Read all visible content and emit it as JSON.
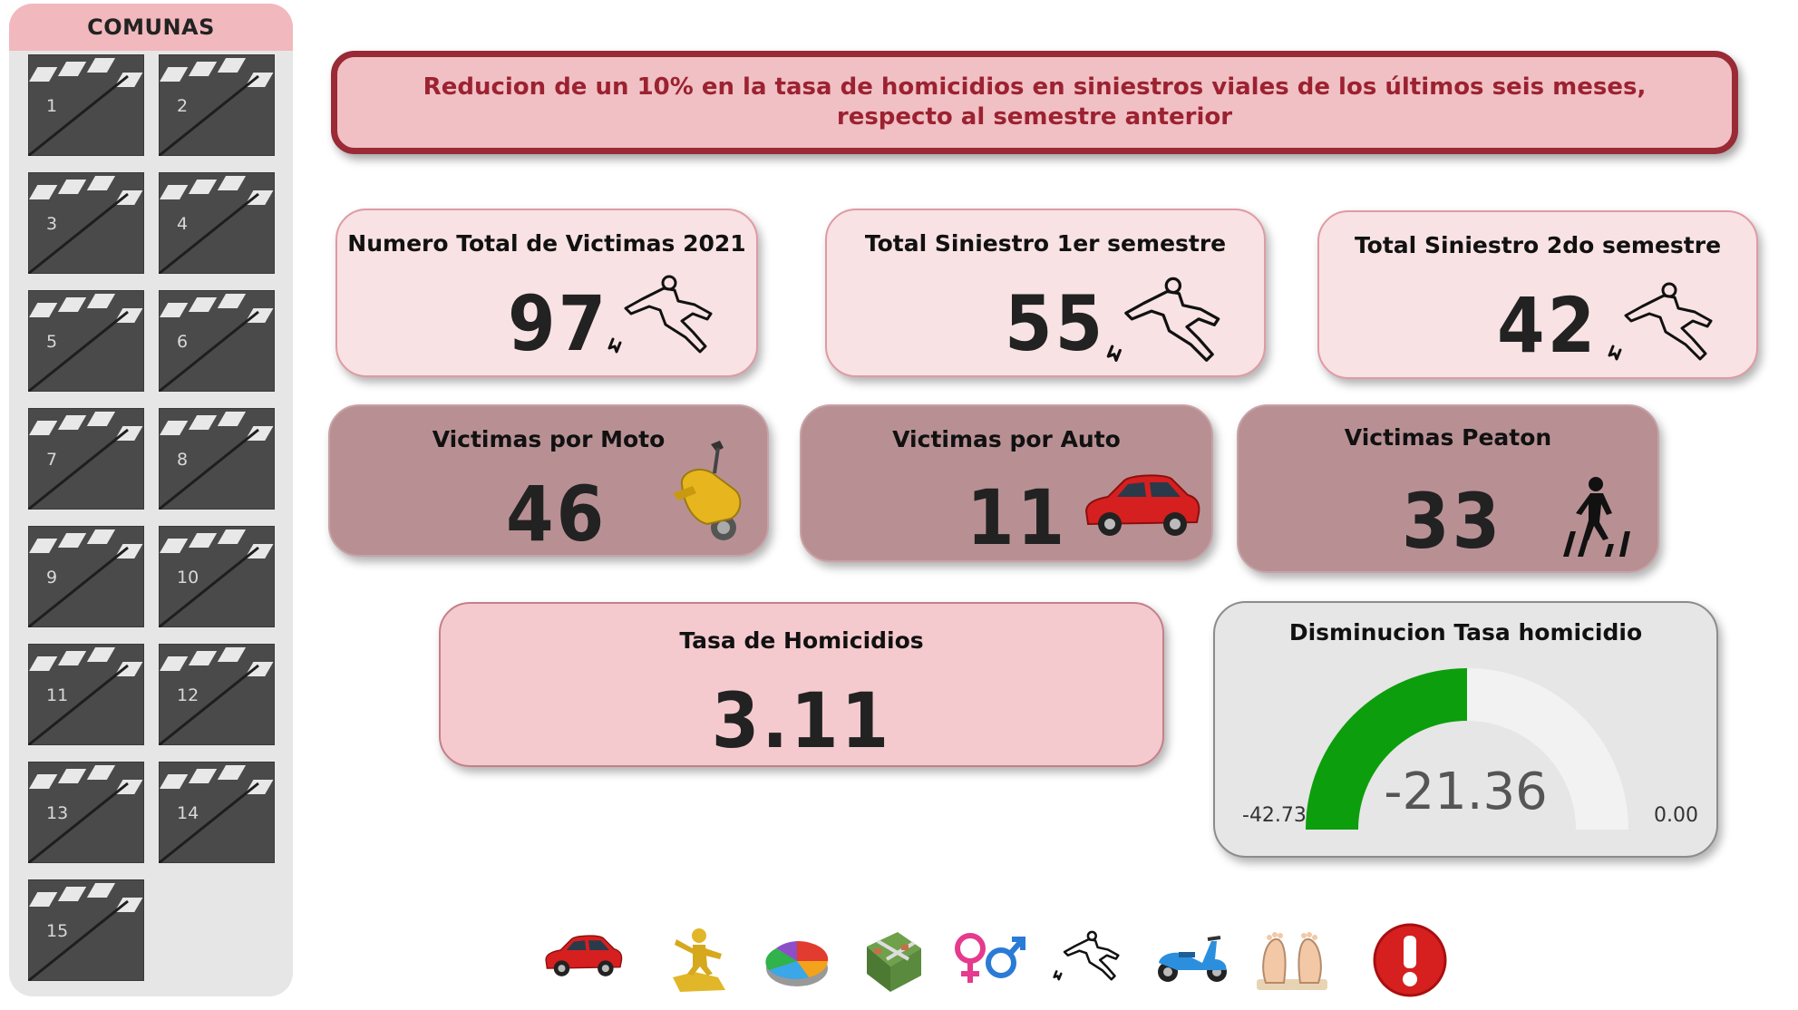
{
  "sidebar": {
    "title": "COMUNAS",
    "comunas": [
      "1",
      "2",
      "3",
      "4",
      "5",
      "6",
      "7",
      "8",
      "9",
      "10",
      "11",
      "12",
      "13",
      "14",
      "15"
    ]
  },
  "banner": {
    "text": "Reducion de un 10% en la tasa de homicidios en siniestros viales de los últimos seis meses, respecto al semestre anterior"
  },
  "cards": {
    "total_victimas": {
      "title": "Numero Total de Victimas 2021",
      "value": "97",
      "icon": "body-outline-icon"
    },
    "siniestro_1": {
      "title": "Total Siniestro 1er semestre",
      "value": "55",
      "icon": "body-outline-icon"
    },
    "siniestro_2": {
      "title": "Total Siniestro 2do semestre",
      "value": "42",
      "icon": "body-outline-icon"
    },
    "moto": {
      "title": "Victimas por Moto",
      "value": "46",
      "icon": "motorcycle-icon"
    },
    "auto": {
      "title": "Victimas por Auto",
      "value": "11",
      "icon": "car-icon"
    },
    "peaton": {
      "title": "Victimas Peaton",
      "value": "33",
      "icon": "pedestrian-crossing-icon"
    },
    "tasa": {
      "title": "Tasa de Homicidios",
      "value": "3.11"
    }
  },
  "gauge": {
    "title": "Disminucion Tasa homicidio",
    "value": "-21.36",
    "min": "-42.73",
    "max": "0.00",
    "fill_fraction": 0.5,
    "fill_color": "#0d9e0d",
    "track_color": "#f2f2f2"
  },
  "bottom_nav": [
    "car-icon",
    "puzzle-figure-icon",
    "pie-chart-icon",
    "city-map-icon",
    "gender-icon",
    "body-outline-icon",
    "scooter-icon",
    "feet-icon",
    "alert-icon"
  ],
  "colors": {
    "banner_border": "#9a2a35",
    "banner_text": "#9c2231",
    "card_light": "#f8e2e4",
    "card_dark": "#b89094",
    "sidebar_header": "#f1b8bd"
  }
}
